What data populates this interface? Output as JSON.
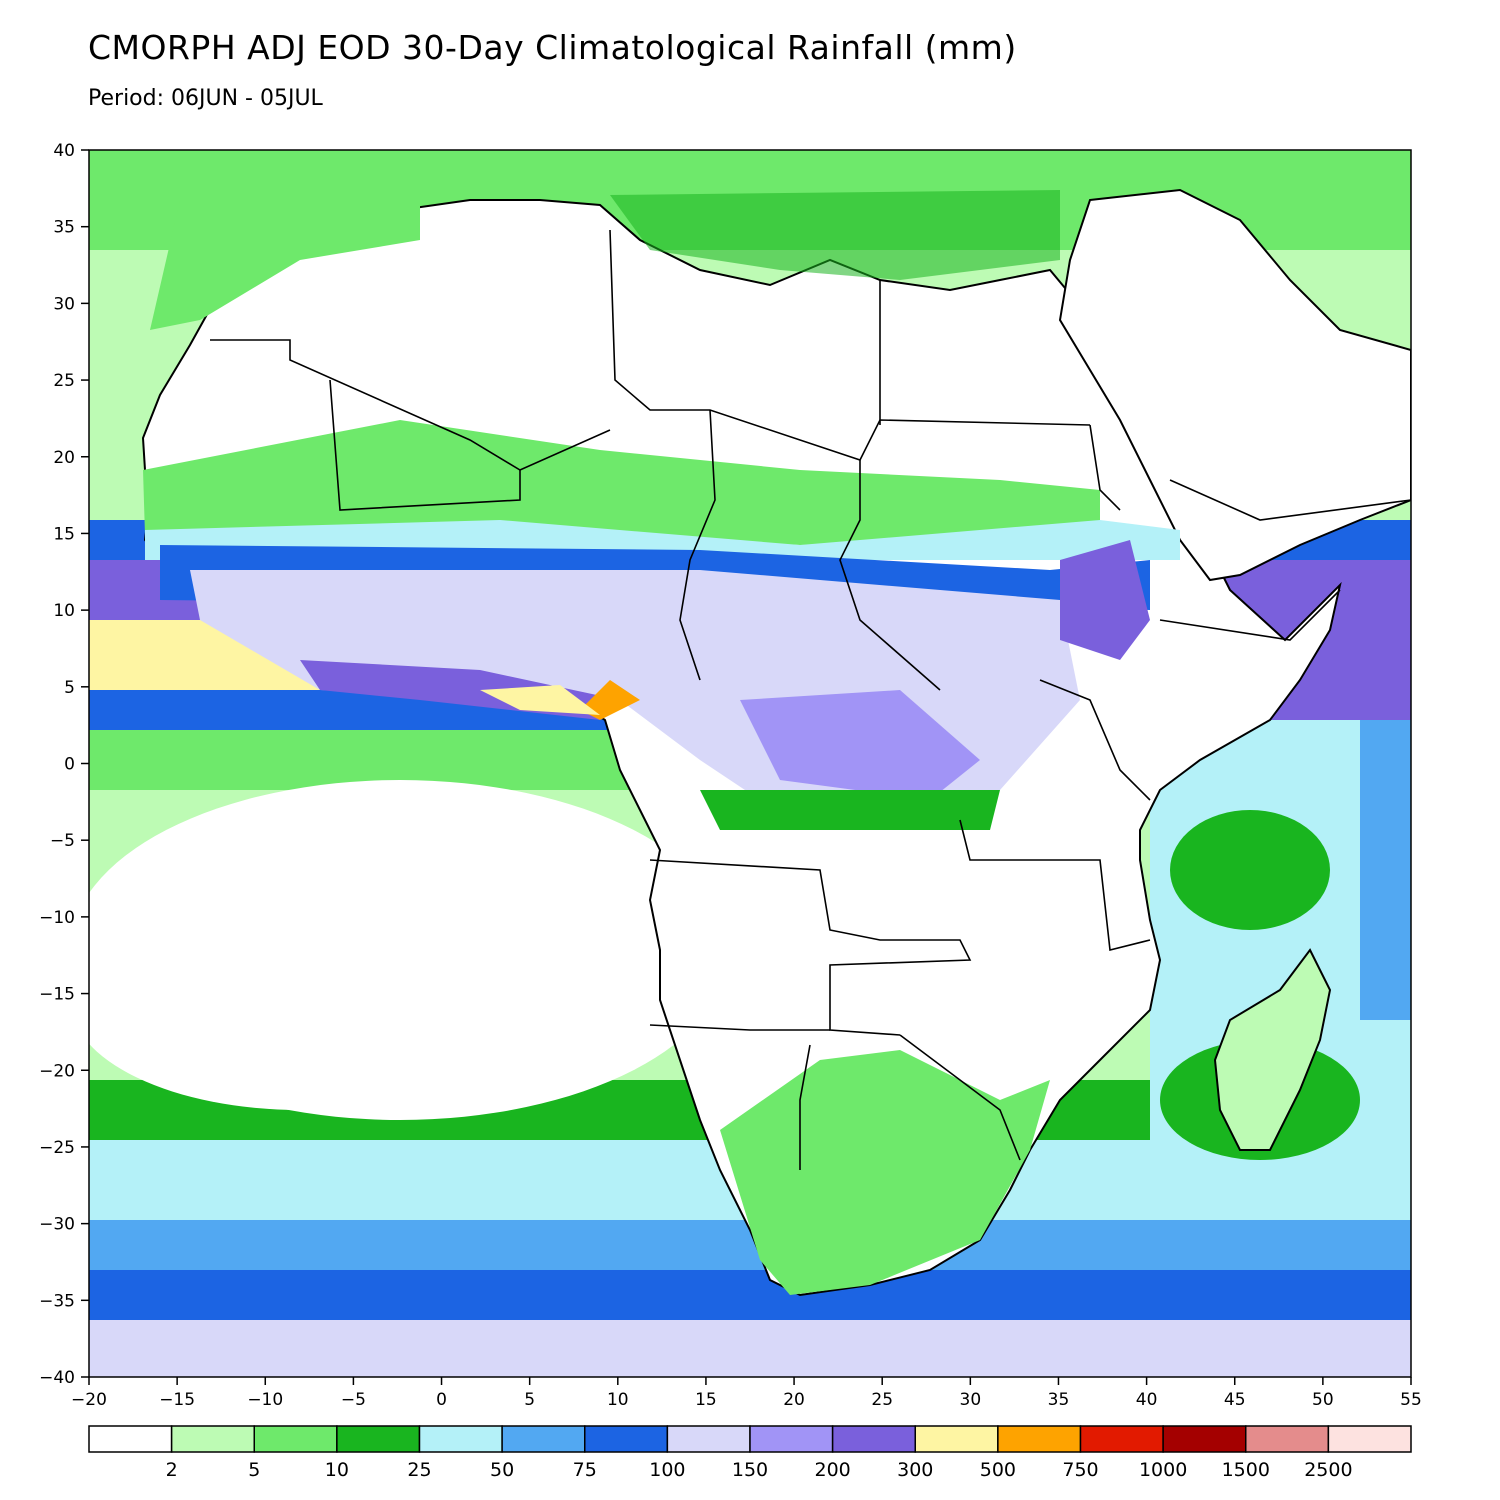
{
  "title": "CMORPH ADJ EOD 30-Day Climatological Rainfall (mm)",
  "subtitle": "Period: 06JUN - 05JUL",
  "map": {
    "lon_range": [
      -20,
      55
    ],
    "lat_range": [
      -40,
      40
    ],
    "lon_ticks": [
      "−20",
      "−15",
      "−10",
      "−5",
      "0",
      "5",
      "10",
      "15",
      "20",
      "25",
      "30",
      "35",
      "40",
      "45",
      "50",
      "55"
    ],
    "lat_ticks": [
      "40",
      "35",
      "30",
      "25",
      "20",
      "15",
      "10",
      "5",
      "0",
      "−5",
      "−10",
      "−15",
      "−20",
      "−25",
      "−30",
      "−35",
      "−40"
    ]
  },
  "legend": {
    "labels": [
      "2",
      "5",
      "10",
      "25",
      "50",
      "75",
      "100",
      "150",
      "200",
      "300",
      "500",
      "750",
      "1000",
      "1500",
      "2500"
    ],
    "colors": [
      "#ffffff",
      "#bdfbb4",
      "#6ee96b",
      "#19b51f",
      "#b4f1f8",
      "#52a8f2",
      "#1c64e3",
      "#d8d8f9",
      "#a194f6",
      "#7a60dc",
      "#fef5a3",
      "#fea300",
      "#e21a00",
      "#a40000",
      "#e48c8c",
      "#fde2e0"
    ]
  }
}
